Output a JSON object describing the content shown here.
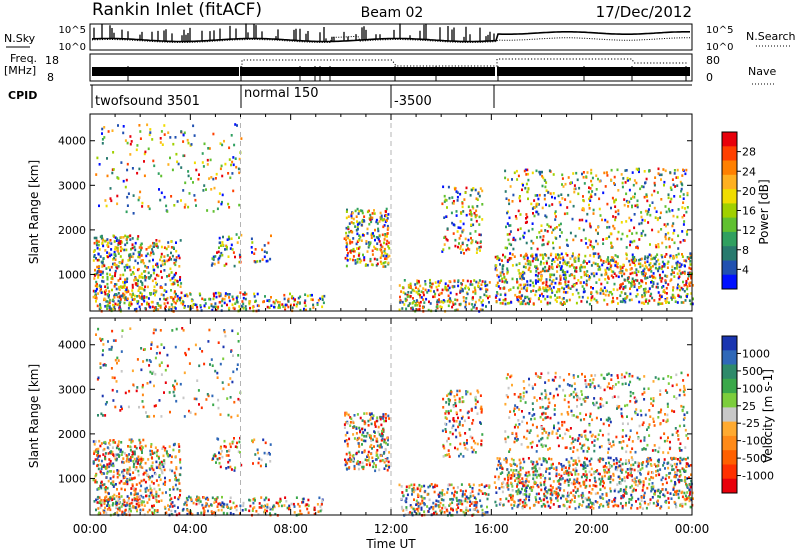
{
  "header": {
    "title": "Rankin Inlet (fitACF)",
    "beam": "Beam 02",
    "date": "17/Dec/2012"
  },
  "nsky_panel": {
    "left_label": "N.Sky",
    "right_label": "N.Search",
    "left_ticks": [
      "10^5",
      "10^0"
    ],
    "right_ticks": [
      "10^5",
      "10^0"
    ]
  },
  "freq_panel": {
    "left_label": "Freq.",
    "left_unit": "[MHz]",
    "right_label": "Nave",
    "left_ticks": [
      "18",
      "8"
    ],
    "right_ticks": [
      "80",
      "0"
    ]
  },
  "cpid": {
    "label": "CPID",
    "segments": [
      {
        "start_h": 0,
        "end_h": 6,
        "text": "twofsound 3501"
      },
      {
        "start_h": 6,
        "end_h": 12,
        "text": "normal 150"
      },
      {
        "start_h": 12,
        "end_h": 16,
        "text": "-3500"
      }
    ]
  },
  "xaxis": {
    "label": "Time UT",
    "range_h": [
      0,
      24
    ],
    "ticks": [
      {
        "h": 0,
        "label": "00:00"
      },
      {
        "h": 4,
        "label": "04:00"
      },
      {
        "h": 8,
        "label": "08:00"
      },
      {
        "h": 12,
        "label": "12:00"
      },
      {
        "h": 16,
        "label": "16:00"
      },
      {
        "h": 20,
        "label": "20:00"
      },
      {
        "h": 24,
        "label": "00:00"
      }
    ]
  },
  "chart_data": [
    {
      "type": "heatmap",
      "name": "power",
      "xlabel": "Time UT",
      "ylabel": "Slant Range [km]",
      "xlim": [
        0,
        24
      ],
      "ylim": [
        180,
        4600
      ],
      "yticks": [
        1000,
        2000,
        3000,
        4000
      ],
      "colorbar": {
        "label": "Power [dB]",
        "ticks": [
          "28",
          "24",
          "20",
          "16",
          "12",
          "8",
          "4"
        ],
        "colors": [
          "#e8000b",
          "#ff4000",
          "#ff8000",
          "#ffb020",
          "#f0dc00",
          "#a0d000",
          "#60c030",
          "#30a060",
          "#287a6e",
          "#2050b0",
          "#0010ff"
        ]
      },
      "regions": [
        {
          "t0": 0.1,
          "t1": 2.1,
          "r0": 420,
          "r1": 1900,
          "scale": 1.0
        },
        {
          "t0": 2.1,
          "t1": 3.6,
          "r0": 600,
          "r1": 1800,
          "scale": 0.7
        },
        {
          "t0": 0.2,
          "t1": 6.2,
          "r0": 200,
          "r1": 620,
          "scale": 0.9
        },
        {
          "t0": 4.8,
          "t1": 6.0,
          "r0": 1200,
          "r1": 1950,
          "scale": 0.5
        },
        {
          "t0": 6.4,
          "t1": 7.2,
          "r0": 1300,
          "r1": 1900,
          "scale": 0.4
        },
        {
          "t0": 6.3,
          "t1": 9.3,
          "r0": 200,
          "r1": 600,
          "scale": 0.7
        },
        {
          "t0": 10.1,
          "t1": 11.9,
          "r0": 1200,
          "r1": 2500,
          "scale": 0.9
        },
        {
          "t0": 12.3,
          "t1": 15.9,
          "r0": 200,
          "r1": 900,
          "scale": 0.9
        },
        {
          "t0": 14.0,
          "t1": 15.6,
          "r0": 1500,
          "r1": 3000,
          "scale": 0.5
        },
        {
          "t0": 16.1,
          "t1": 24.0,
          "r0": 350,
          "r1": 1500,
          "scale": 0.9
        },
        {
          "t0": 16.5,
          "t1": 23.8,
          "r0": 1600,
          "r1": 3400,
          "scale": 0.35
        },
        {
          "t0": 0.2,
          "t1": 6.0,
          "r0": 2400,
          "r1": 4400,
          "scale": 0.15
        }
      ]
    },
    {
      "type": "heatmap",
      "name": "velocity",
      "xlabel": "Time UT",
      "ylabel": "Slant Range [km]",
      "xlim": [
        0,
        24
      ],
      "ylim": [
        180,
        4600
      ],
      "yticks": [
        1000,
        2000,
        3000,
        4000
      ],
      "colorbar": {
        "label": "Velocity [m s-1]",
        "ticks": [
          "1000",
          "500",
          "100",
          "25",
          "-25",
          "-100",
          "-500",
          "-1000"
        ],
        "colors": [
          "#1a35b0",
          "#2f68b8",
          "#2e8a6a",
          "#3aa84a",
          "#7ccd3c",
          "#c8c8c8",
          "#ffaa30",
          "#ff8a18",
          "#ff6000",
          "#ff3000",
          "#e8000b"
        ]
      },
      "regions": [
        {
          "t0": 0.1,
          "t1": 2.1,
          "r0": 420,
          "r1": 1900,
          "scale": 1.0
        },
        {
          "t0": 2.1,
          "t1": 3.6,
          "r0": 600,
          "r1": 1800,
          "scale": 0.7
        },
        {
          "t0": 0.2,
          "t1": 6.2,
          "r0": 200,
          "r1": 620,
          "scale": 0.9
        },
        {
          "t0": 4.8,
          "t1": 6.0,
          "r0": 1200,
          "r1": 1950,
          "scale": 0.5
        },
        {
          "t0": 6.4,
          "t1": 7.2,
          "r0": 1300,
          "r1": 1900,
          "scale": 0.4
        },
        {
          "t0": 6.3,
          "t1": 9.3,
          "r0": 200,
          "r1": 600,
          "scale": 0.7
        },
        {
          "t0": 10.1,
          "t1": 11.9,
          "r0": 1200,
          "r1": 2500,
          "scale": 0.9
        },
        {
          "t0": 12.3,
          "t1": 15.9,
          "r0": 200,
          "r1": 900,
          "scale": 0.9
        },
        {
          "t0": 14.0,
          "t1": 15.6,
          "r0": 1500,
          "r1": 3000,
          "scale": 0.5
        },
        {
          "t0": 16.1,
          "t1": 24.0,
          "r0": 350,
          "r1": 1500,
          "scale": 0.9
        },
        {
          "t0": 16.5,
          "t1": 23.8,
          "r0": 1600,
          "r1": 3400,
          "scale": 0.35
        },
        {
          "t0": 0.2,
          "t1": 6.0,
          "r0": 2400,
          "r1": 4400,
          "scale": 0.15
        }
      ]
    }
  ]
}
